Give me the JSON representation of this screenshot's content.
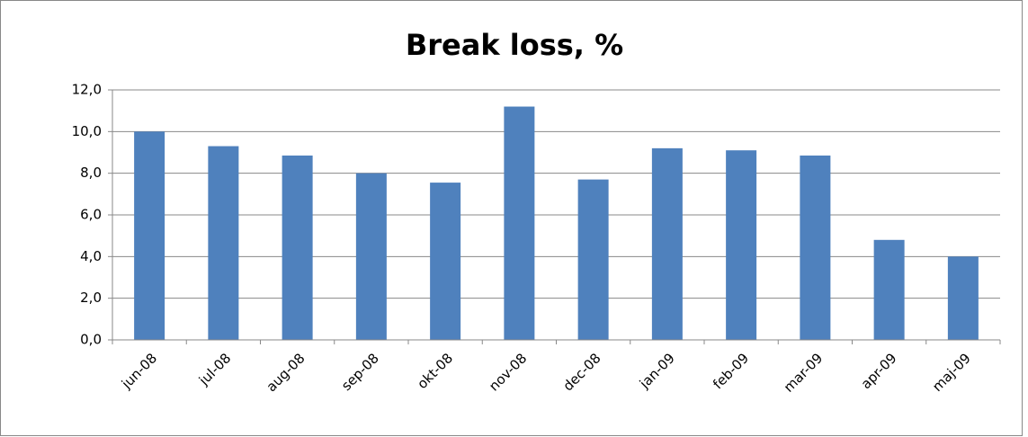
{
  "chart_data": {
    "type": "bar",
    "title": "Break loss, %",
    "categories": [
      "jun-08",
      "jul-08",
      "aug-08",
      "sep-08",
      "okt-08",
      "nov-08",
      "dec-08",
      "jan-09",
      "feb-09",
      "mar-09",
      "apr-09",
      "maj-09"
    ],
    "values": [
      10.0,
      9.3,
      8.85,
      8.0,
      7.55,
      11.2,
      7.7,
      9.2,
      9.1,
      8.85,
      4.8,
      4.0
    ],
    "color": "#4f81bd",
    "ylim": [
      0,
      12
    ],
    "yticks": [
      {
        "value": 0,
        "label": "0,0"
      },
      {
        "value": 2,
        "label": "2,0"
      },
      {
        "value": 4,
        "label": "4,0"
      },
      {
        "value": 6,
        "label": "6,0"
      },
      {
        "value": 8,
        "label": "8,0"
      },
      {
        "value": 10,
        "label": "10,0"
      },
      {
        "value": 12,
        "label": "12,0"
      }
    ],
    "grid": true
  }
}
